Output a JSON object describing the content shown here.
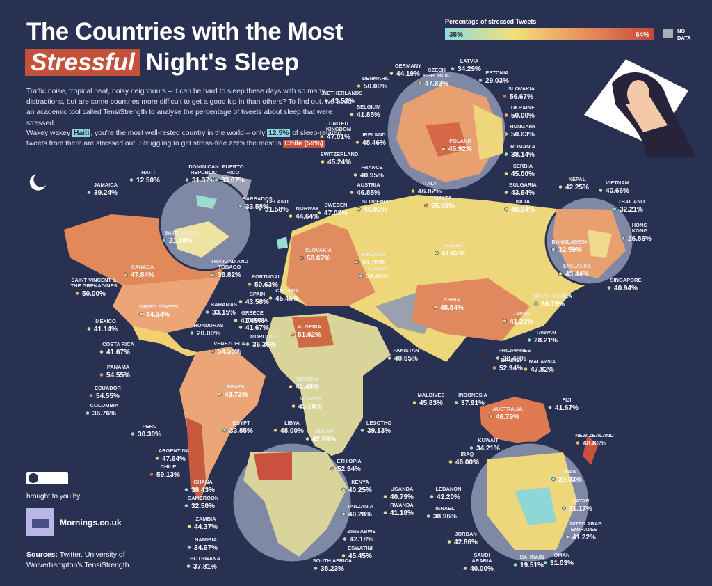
{
  "header": {
    "title_line1": "The Countries with the Most",
    "title_highlight": "Stressful",
    "title_line2": "Night's Sleep"
  },
  "description": {
    "paragraph1": "Traffic noise, tropical heat, noisy neighbours – it can be hard to sleep these days with so many distractions, but are some countries more difficult to get a good kip in than others? To find out, we used an academic tool called TensiStrength to analyse the percentage of tweets about sleep that were stressed.",
    "paragraph2": [
      "Wakey wakey ",
      "Haiti",
      ", you're the most well-rested country in the world – only ",
      "12.5%",
      " of sleep-related tweets from there are stressed out. Struggling to get stress-free zzz's the most is ",
      "Chile (59%)",
      "."
    ]
  },
  "legend": {
    "title": "Percentage of stressed Tweets",
    "min": 35,
    "min_label": "35%",
    "max": 64,
    "max_label": "64%",
    "no_data": [
      "NO",
      "DATA"
    ]
  },
  "countries": [
    {
      "name": [
        "GERMANY"
      ],
      "value": 44.19,
      "value_label": "44.19%"
    },
    {
      "name": [
        "CZECH",
        "REPUBLIC"
      ],
      "value": 47.83,
      "value_label": "47.83%"
    },
    {
      "name": [
        "LATVIA"
      ],
      "value": 34.29,
      "value_label": "34.29%"
    },
    {
      "name": [
        "ESTONIA"
      ],
      "value": 29.03,
      "value_label": "29.03%"
    },
    {
      "name": [
        "DENMARK"
      ],
      "value": 50.0,
      "value_label": "50.00%"
    },
    {
      "name": [
        "NETHERLANDS"
      ],
      "value": 43.52,
      "value_label": "43.52%"
    },
    {
      "name": [
        "SLOVAKIA"
      ],
      "value": 56.67,
      "value_label": "56.67%"
    },
    {
      "name": [
        "BELGIUM"
      ],
      "value": 41.85,
      "value_label": "41.85%"
    },
    {
      "name": [
        "UKRAINE"
      ],
      "value": 50.0,
      "value_label": "50.00%"
    },
    {
      "name": [
        "UNITED",
        "KINGDOM"
      ],
      "value": 47.01,
      "value_label": "47.01%"
    },
    {
      "name": [
        "IRELAND"
      ],
      "value": 48.46,
      "value_label": "48.46%"
    },
    {
      "name": [
        "HUNGARY"
      ],
      "value": 50.63,
      "value_label": "50.63%"
    },
    {
      "name": [
        "POLAND"
      ],
      "value": 45.92,
      "value_label": "45.92%"
    },
    {
      "name": [
        "ROMANIA"
      ],
      "value": 38.14,
      "value_label": "38.14%"
    },
    {
      "name": [
        "SWITZERLAND"
      ],
      "value": 45.24,
      "value_label": "45.24%"
    },
    {
      "name": [
        "FRANCE"
      ],
      "value": 40.95,
      "value_label": "40.95%"
    },
    {
      "name": [
        "SERBIA"
      ],
      "value": 45.0,
      "value_label": "45.00%"
    },
    {
      "name": [
        "BULGARIA"
      ],
      "value": 43.64,
      "value_label": "43.64%"
    },
    {
      "name": [
        "AUSTRIA"
      ],
      "value": 46.85,
      "value_label": "46.85%"
    },
    {
      "name": [
        "ITALY"
      ],
      "value": 46.82,
      "value_label": "46.82%"
    },
    {
      "name": [
        "MALTA"
      ],
      "value": 55.56,
      "value_label": "55.56%"
    },
    {
      "name": [
        "SLOVENIA"
      ],
      "value": 40.0,
      "value_label": "40.00%"
    },
    {
      "name": [
        "HAITI"
      ],
      "value": 12.5,
      "value_label": "12.50%"
    },
    {
      "name": [
        "DOMINICAN",
        "REPUBLIC"
      ],
      "value": 31.37,
      "value_label": "31.37%"
    },
    {
      "name": [
        "PUERTO",
        "RICO"
      ],
      "value": 33.07,
      "value_label": "33.07%"
    },
    {
      "name": [
        "JAMAICA"
      ],
      "value": 39.24,
      "value_label": "39.24%"
    },
    {
      "name": [
        "BARBADOS"
      ],
      "value": 33.58,
      "value_label": "33.58%"
    },
    {
      "name": [
        "SAINT LUCIA"
      ],
      "value": 21.05,
      "value_label": "21.05%"
    },
    {
      "name": [
        "ICELAND"
      ],
      "value": 31.58,
      "value_label": "31.58%"
    },
    {
      "name": [
        "NORWAY"
      ],
      "value": 44.64,
      "value_label": "44.64%"
    },
    {
      "name": [
        "SWEDEN"
      ],
      "value": 47.02,
      "value_label": "47.02%"
    },
    {
      "name": [
        "NEPAL"
      ],
      "value": 42.25,
      "value_label": "42.25%"
    },
    {
      "name": [
        "VIETNAM"
      ],
      "value": 40.66,
      "value_label": "40.66%"
    },
    {
      "name": [
        "THAILAND"
      ],
      "value": 32.21,
      "value_label": "32.21%"
    },
    {
      "name": [
        "INDIA"
      ],
      "value": 40.94,
      "value_label": "40.94%"
    },
    {
      "name": [
        "HONG",
        "KONG"
      ],
      "value": 26.86,
      "value_label": "26.86%"
    },
    {
      "name": [
        "BANGLADESH"
      ],
      "value": 32.59,
      "value_label": "32.59%"
    },
    {
      "name": [
        "SRI LANKA"
      ],
      "value": 43.44,
      "value_label": "43.44%"
    },
    {
      "name": [
        "SINGAPORE"
      ],
      "value": 40.94,
      "value_label": "40.94%"
    },
    {
      "name": [
        "RUSSIA"
      ],
      "value": 41.62,
      "value_label": "41.62%"
    },
    {
      "name": [
        "FINLAND"
      ],
      "value": 49.78,
      "value_label": "49.78%"
    },
    {
      "name": [
        "TURKEY"
      ],
      "value": 38.46,
      "value_label": "38.46%"
    },
    {
      "name": [
        "SLOVAKIA"
      ],
      "value": 56.67,
      "value_label": "56.67%"
    },
    {
      "name": [
        "CANADA"
      ],
      "value": 47.84,
      "value_label": "47.84%"
    },
    {
      "name": [
        "TRINIDAD AND",
        "TOBAGO"
      ],
      "value": 36.82,
      "value_label": "36.82%"
    },
    {
      "name": [
        "SAINT VINCENT &",
        "THE GRENADINES"
      ],
      "value": 50.0,
      "value_label": "50.00%"
    },
    {
      "name": [
        "PORTUGAL"
      ],
      "value": 50.63,
      "value_label": "50.63%"
    },
    {
      "name": [
        "SPAIN"
      ],
      "value": 43.58,
      "value_label": "43.58%"
    },
    {
      "name": [
        "CROATIA"
      ],
      "value": 45.45,
      "value_label": "45.45%"
    },
    {
      "name": [
        "SOUTH KOREA"
      ],
      "value": 36.79,
      "value_label": "36.79%"
    },
    {
      "name": [
        "UNITED STATES"
      ],
      "value": 44.34,
      "value_label": "44.34%"
    },
    {
      "name": [
        "BAHAMAS"
      ],
      "value": 33.15,
      "value_label": "33.15%"
    },
    {
      "name": [
        "GREECE"
      ],
      "value": 41.49,
      "value_label": "41.49%"
    },
    {
      "name": [
        "CHINA"
      ],
      "value": 45.54,
      "value_label": "45.54%"
    },
    {
      "name": [
        "JAPAN"
      ],
      "value": 41.21,
      "value_label": "41.21%"
    },
    {
      "name": [
        "MEXICO"
      ],
      "value": 41.14,
      "value_label": "41.14%"
    },
    {
      "name": [
        "HONDURAS"
      ],
      "value": 20.0,
      "value_label": "20.00%"
    },
    {
      "name": [
        "TUNISIA"
      ],
      "value": 41.67,
      "value_label": "41.67%"
    },
    {
      "name": [
        "ALGERIA"
      ],
      "value": 51.92,
      "value_label": "51.92%"
    },
    {
      "name": [
        "TAIWAN"
      ],
      "value": 28.21,
      "value_label": "28.21%"
    },
    {
      "name": [
        "VENEZUELA"
      ],
      "value": 54.55,
      "value_label": "54.55%"
    },
    {
      "name": [
        "MOROCCO"
      ],
      "value": 36.36,
      "value_label": "36.36%"
    },
    {
      "name": [
        "COSTA RICA"
      ],
      "value": 41.67,
      "value_label": "41.67%"
    },
    {
      "name": [
        "PAKISTAN"
      ],
      "value": 40.65,
      "value_label": "40.65%"
    },
    {
      "name": [
        "PHILIPPINES"
      ],
      "value": 38.4,
      "value_label": "38.40%"
    },
    {
      "name": [
        "BRUNEI"
      ],
      "value": 52.94,
      "value_label": "52.94%"
    },
    {
      "name": [
        "MALAYSIA"
      ],
      "value": 47.82,
      "value_label": "47.82%"
    },
    {
      "name": [
        "PANAMA"
      ],
      "value": 54.55,
      "value_label": "54.55%"
    },
    {
      "name": [
        "NIGERIA"
      ],
      "value": 41.49,
      "value_label": "41.49%"
    },
    {
      "name": [
        "BRAZIL"
      ],
      "value": 43.73,
      "value_label": "43.73%"
    },
    {
      "name": [
        "ECUADOR"
      ],
      "value": 54.55,
      "value_label": "54.55%"
    },
    {
      "name": [
        "COLOMBIA"
      ],
      "value": 36.76,
      "value_label": "36.76%"
    },
    {
      "name": [
        "MALDIVES"
      ],
      "value": 45.83,
      "value_label": "45.83%"
    },
    {
      "name": [
        "INDONESIA"
      ],
      "value": 37.91,
      "value_label": "37.91%"
    },
    {
      "name": [
        "MALAWI"
      ],
      "value": 45.9,
      "value_label": "45.90%"
    },
    {
      "name": [
        "FIJI"
      ],
      "value": 41.67,
      "value_label": "41.67%"
    },
    {
      "name": [
        "AUSTRALIA"
      ],
      "value": 46.79,
      "value_label": "46.79%"
    },
    {
      "name": [
        "LESOTHO"
      ],
      "value": 39.13,
      "value_label": "39.13%"
    },
    {
      "name": [
        "PERU"
      ],
      "value": 30.3,
      "value_label": "30.30%"
    },
    {
      "name": [
        "EGYPT"
      ],
      "value": 33.85,
      "value_label": "33.85%"
    },
    {
      "name": [
        "LIBYA"
      ],
      "value": 48.0,
      "value_label": "48.00%"
    },
    {
      "name": [
        "SUDAN"
      ],
      "value": 42.86,
      "value_label": "42.86%"
    },
    {
      "name": [
        "KUWAIT"
      ],
      "value": 34.21,
      "value_label": "34.21%"
    },
    {
      "name": [
        "NEW ZEALAND"
      ],
      "value": 48.86,
      "value_label": "48.86%"
    },
    {
      "name": [
        "ARGENTINA"
      ],
      "value": 47.64,
      "value_label": "47.64%"
    },
    {
      "name": [
        "IRAQ"
      ],
      "value": 46.0,
      "value_label": "46.00%"
    },
    {
      "name": [
        "CHILE"
      ],
      "value": 59.13,
      "value_label": "59.13%"
    },
    {
      "name": [
        "IRAN"
      ],
      "value": 29.03,
      "value_label": "29.03%"
    },
    {
      "name": [
        "ETHIOPIA"
      ],
      "value": 52.94,
      "value_label": "52.94%"
    },
    {
      "name": [
        "GHANA"
      ],
      "value": 38.43,
      "value_label": "38.43%"
    },
    {
      "name": [
        "KENYA"
      ],
      "value": 40.25,
      "value_label": "40.25%"
    },
    {
      "name": [
        "UGANDA"
      ],
      "value": 40.79,
      "value_label": "40.79%"
    },
    {
      "name": [
        "LEBANON"
      ],
      "value": 42.2,
      "value_label": "42.20%"
    },
    {
      "name": [
        "CAMEROON"
      ],
      "value": 32.5,
      "value_label": "32.50%"
    },
    {
      "name": [
        "RWANDA"
      ],
      "value": 41.18,
      "value_label": "41.18%"
    },
    {
      "name": [
        "TANZANIA"
      ],
      "value": 40.28,
      "value_label": "40.28%"
    },
    {
      "name": [
        "QATAR"
      ],
      "value": 31.17,
      "value_label": "31.17%"
    },
    {
      "name": [
        "ISRAEL"
      ],
      "value": 38.96,
      "value_label": "38.96%"
    },
    {
      "name": [
        "ZAMBIA"
      ],
      "value": 44.37,
      "value_label": "44.37%"
    },
    {
      "name": [
        "ZIMBABWE"
      ],
      "value": 42.18,
      "value_label": "42.18%"
    },
    {
      "name": [
        "UNITED ARAB",
        "EMIRATES"
      ],
      "value": 41.22,
      "value_label": "41.22%"
    },
    {
      "name": [
        "JORDAN"
      ],
      "value": 42.86,
      "value_label": "42.86%"
    },
    {
      "name": [
        "NAMIBIA"
      ],
      "value": 34.97,
      "value_label": "34.97%"
    },
    {
      "name": [
        "ESWATINI"
      ],
      "value": 45.45,
      "value_label": "45.45%"
    },
    {
      "name": [
        "SAUDI",
        "ARABIA"
      ],
      "value": 40.0,
      "value_label": "40.00%"
    },
    {
      "name": [
        "BAHRAIN"
      ],
      "value": 19.51,
      "value_label": "19.51%"
    },
    {
      "name": [
        "OMAN"
      ],
      "value": 31.03,
      "value_label": "31.03%"
    },
    {
      "name": [
        "BOTSWANA"
      ],
      "value": 37.81,
      "value_label": "37.81%"
    },
    {
      "name": [
        "SOUTH AFRICA"
      ],
      "value": 38.23,
      "value_label": "38.23%"
    }
  ],
  "footer": {
    "brought_by": "brought to you by",
    "brand": "Mornings.co.uk",
    "sources_label": "Sources:",
    "sources_text": "Twitter, University of Wolverhampton's TensiStrength."
  }
}
